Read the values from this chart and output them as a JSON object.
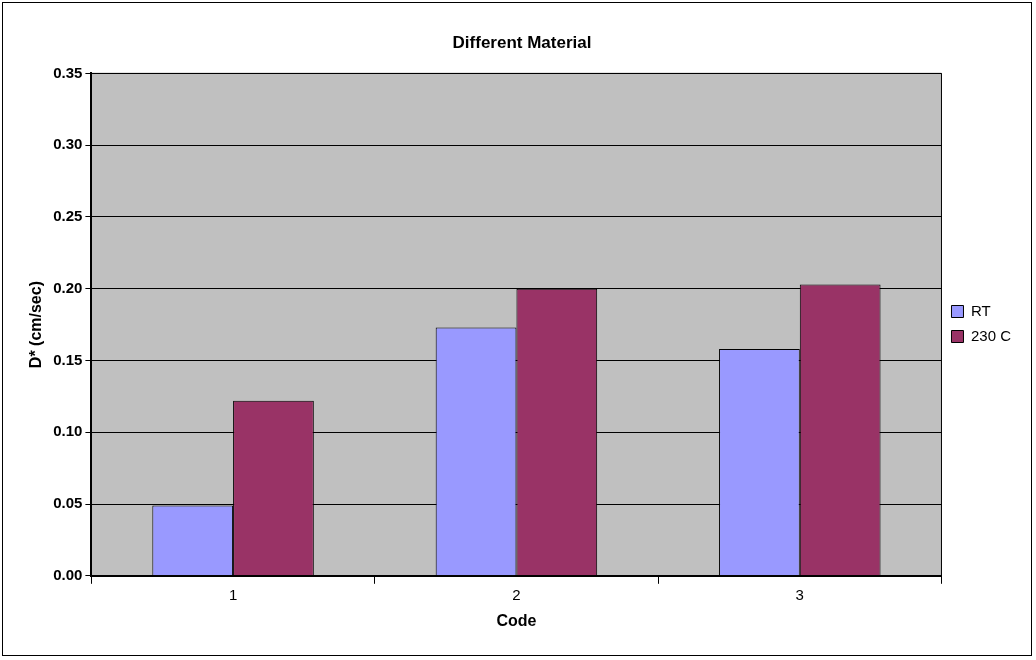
{
  "chart_data": {
    "type": "bar",
    "title": "Different Material",
    "xlabel": "Code",
    "ylabel": "D* (cm/sec)",
    "categories": [
      "1",
      "2",
      "3"
    ],
    "series": [
      {
        "name": "RT",
        "color": "#9999ff",
        "values": [
          0.049,
          0.173,
          0.158
        ]
      },
      {
        "name": "230 C",
        "color": "#993366",
        "values": [
          0.122,
          0.2,
          0.203
        ]
      }
    ],
    "ylim": [
      0,
      0.35
    ],
    "yticks": [
      {
        "value": 0,
        "label": "0.00"
      },
      {
        "value": 0.05,
        "label": "0.05"
      },
      {
        "value": 0.1,
        "label": "0.10"
      },
      {
        "value": 0.15,
        "label": "0.15"
      },
      {
        "value": 0.2,
        "label": "0.20"
      },
      {
        "value": 0.25,
        "label": "0.25"
      },
      {
        "value": 0.3,
        "label": "0.30"
      },
      {
        "value": 0.35,
        "label": "0.35"
      }
    ],
    "grid": "y",
    "legend": "right"
  }
}
